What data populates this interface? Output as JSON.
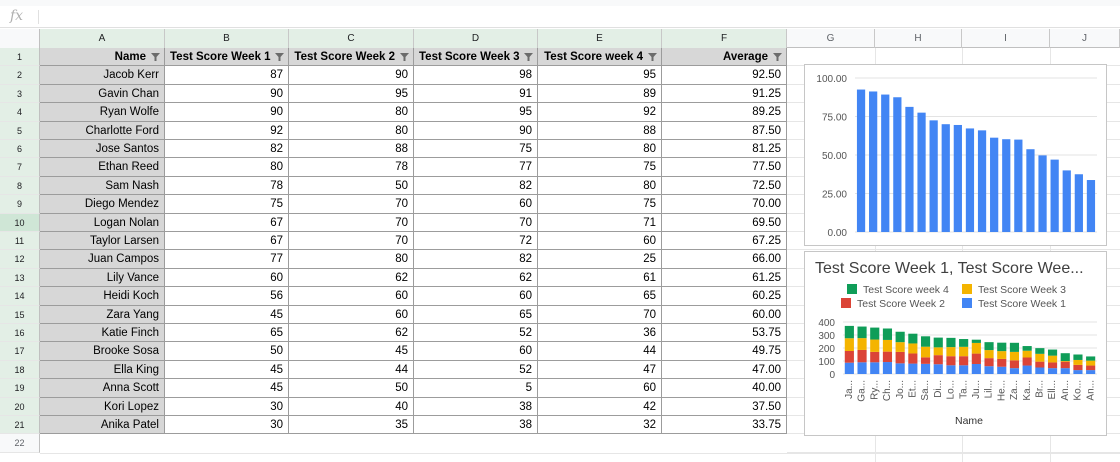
{
  "formula_bar": {
    "icon": "fx",
    "value": ""
  },
  "columns": [
    "A",
    "B",
    "C",
    "D",
    "E",
    "F",
    "G",
    "H",
    "I",
    "J"
  ],
  "rows": [
    "1",
    "2",
    "3",
    "4",
    "5",
    "6",
    "7",
    "8",
    "9",
    "10",
    "11",
    "12",
    "13",
    "14",
    "15",
    "16",
    "17",
    "18",
    "19",
    "20",
    "21",
    "22"
  ],
  "table": {
    "headers": [
      "Name",
      "Test Score Week 1",
      "Test Score Week 2",
      "Test Score Week 3",
      "Test Score week 4",
      "Average"
    ],
    "data": [
      [
        "Jacob Kerr",
        "87",
        "90",
        "98",
        "95",
        "92.50"
      ],
      [
        "Gavin Chan",
        "90",
        "95",
        "91",
        "89",
        "91.25"
      ],
      [
        "Ryan Wolfe",
        "90",
        "80",
        "95",
        "92",
        "89.25"
      ],
      [
        "Charlotte Ford",
        "92",
        "80",
        "90",
        "88",
        "87.50"
      ],
      [
        "Jose Santos",
        "82",
        "88",
        "75",
        "80",
        "81.25"
      ],
      [
        "Ethan Reed",
        "80",
        "78",
        "77",
        "75",
        "77.50"
      ],
      [
        "Sam Nash",
        "78",
        "50",
        "82",
        "80",
        "72.50"
      ],
      [
        "Diego Mendez",
        "75",
        "70",
        "60",
        "75",
        "70.00"
      ],
      [
        "Logan Nolan",
        "67",
        "70",
        "70",
        "71",
        "69.50"
      ],
      [
        "Taylor Larsen",
        "67",
        "70",
        "72",
        "60",
        "67.25"
      ],
      [
        "Juan Campos",
        "77",
        "80",
        "82",
        "25",
        "66.00"
      ],
      [
        "Lily Vance",
        "60",
        "62",
        "62",
        "61",
        "61.25"
      ],
      [
        "Heidi Koch",
        "56",
        "60",
        "60",
        "65",
        "60.25"
      ],
      [
        "Zara Yang",
        "45",
        "60",
        "65",
        "70",
        "60.00"
      ],
      [
        "Katie Finch",
        "65",
        "62",
        "52",
        "36",
        "53.75"
      ],
      [
        "Brooke Sosa",
        "50",
        "45",
        "60",
        "44",
        "49.75"
      ],
      [
        "Ella King",
        "45",
        "44",
        "52",
        "47",
        "47.00"
      ],
      [
        "Anna Scott",
        "45",
        "50",
        "5",
        "60",
        "40.00"
      ],
      [
        "Kori Lopez",
        "30",
        "40",
        "38",
        "42",
        "37.50"
      ],
      [
        "Anika Patel",
        "30",
        "35",
        "38",
        "32",
        "33.75"
      ]
    ]
  },
  "colors": {
    "bar_blue": "#4285f4",
    "series_week1": "#4285f4",
    "series_week2": "#db4437",
    "series_week3": "#f4b400",
    "series_week4": "#0f9d58",
    "selection_green": "#e3efe6"
  },
  "chart_data": [
    {
      "type": "bar",
      "title": "",
      "categories": [
        "Jacob Kerr",
        "Gavin Chan",
        "Ryan Wolfe",
        "Charlotte Ford",
        "Jose Santos",
        "Ethan Reed",
        "Sam Nash",
        "Diego Mendez",
        "Logan Nolan",
        "Taylor Larsen",
        "Juan Campos",
        "Lily Vance",
        "Heidi Koch",
        "Zara Yang",
        "Katie Finch",
        "Brooke Sosa",
        "Ella King",
        "Anna Scott",
        "Kori Lopez",
        "Anika Patel"
      ],
      "values": [
        92.5,
        91.25,
        89.25,
        87.5,
        81.25,
        77.5,
        72.5,
        70,
        69.5,
        67.25,
        66,
        61.25,
        60.25,
        60,
        53.75,
        49.75,
        47,
        40,
        37.5,
        33.75
      ],
      "ylim": [
        0,
        100
      ],
      "yticks": [
        "0.00",
        "25.00",
        "50.00",
        "75.00",
        "100.00"
      ],
      "grid": true
    },
    {
      "type": "bar",
      "stacked": true,
      "title": "Test Score Week 1, Test Score Wee...",
      "xlabel": "Name",
      "categories": [
        "Ja...",
        "Ga...",
        "Ry...",
        "Ch...",
        "Jo...",
        "Et...",
        "Sa...",
        "Di...",
        "Lo...",
        "Ta...",
        "Ju...",
        "Lil...",
        "He...",
        "Za...",
        "Ka...",
        "Br...",
        "Ell...",
        "An...",
        "Ko...",
        "An..."
      ],
      "series": [
        {
          "name": "Test Score Week 1",
          "values": [
            87,
            90,
            90,
            92,
            82,
            80,
            78,
            75,
            67,
            67,
            77,
            60,
            56,
            45,
            65,
            50,
            45,
            45,
            30,
            30
          ]
        },
        {
          "name": "Test Score Week 2",
          "values": [
            90,
            95,
            80,
            80,
            88,
            78,
            50,
            70,
            70,
            70,
            80,
            62,
            60,
            60,
            62,
            45,
            44,
            50,
            40,
            35
          ]
        },
        {
          "name": "Test Score Week 3",
          "values": [
            98,
            91,
            95,
            90,
            75,
            77,
            82,
            60,
            70,
            72,
            82,
            62,
            60,
            65,
            52,
            60,
            52,
            5,
            38,
            38
          ]
        },
        {
          "name": "Test Score week 4",
          "values": [
            95,
            89,
            92,
            88,
            80,
            75,
            80,
            75,
            71,
            60,
            25,
            61,
            65,
            70,
            36,
            44,
            47,
            60,
            42,
            32
          ]
        }
      ],
      "ylim": [
        0,
        400
      ],
      "yticks": [
        "0",
        "100",
        "200",
        "300",
        "400"
      ],
      "legend": "top"
    }
  ]
}
